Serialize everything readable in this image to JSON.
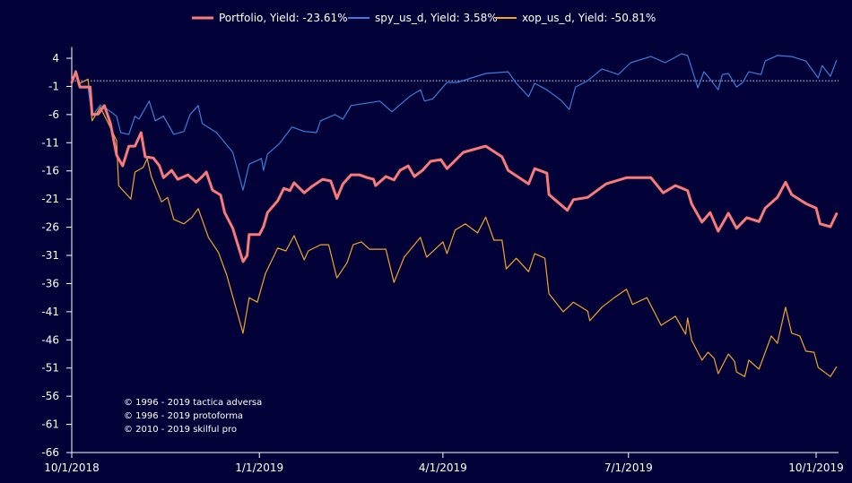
{
  "chart_data": {
    "type": "line",
    "title": "",
    "xlabel": "",
    "ylabel": "",
    "xlim": [
      "2018-10-01",
      "2019-10-11"
    ],
    "ylim": [
      -66,
      6
    ],
    "y_ticks": [
      4,
      -1,
      -6,
      -11,
      -16,
      -21,
      -26,
      -31,
      -36,
      -41,
      -46,
      -51,
      -56,
      -61,
      -66
    ],
    "x_ticks": [
      {
        "date": "2018-10-01",
        "label": "10/1/2018"
      },
      {
        "date": "2019-01-01",
        "label": "1/1/2019"
      },
      {
        "date": "2019-04-01",
        "label": "4/1/2019"
      },
      {
        "date": "2019-07-01",
        "label": "7/1/2019"
      },
      {
        "date": "2019-10-01",
        "label": "10/1/2019"
      }
    ],
    "reference_line": {
      "value": 0,
      "style": "dotted",
      "color": "#cfd3ff"
    },
    "grid": false,
    "legend_position": "top-center",
    "series": [
      {
        "name": "Portfolio, Yield: -23.61%",
        "color": "#f87a7a",
        "points": [
          [
            "2018-10-01",
            -0.3
          ],
          [
            "2018-10-03",
            1.6
          ],
          [
            "2018-10-05",
            -1.1
          ],
          [
            "2018-10-10",
            -1.1
          ],
          [
            "2018-10-11",
            -6.0
          ],
          [
            "2018-10-14",
            -5.9
          ],
          [
            "2018-10-17",
            -4.4
          ],
          [
            "2018-10-20",
            -7.6
          ],
          [
            "2018-10-23",
            -13.2
          ],
          [
            "2018-10-26",
            -15.1
          ],
          [
            "2018-10-29",
            -11.6
          ],
          [
            "2018-11-01",
            -11.6
          ],
          [
            "2018-11-04",
            -9.2
          ],
          [
            "2018-11-06",
            -13.5
          ],
          [
            "2018-11-10",
            -13.7
          ],
          [
            "2018-11-13",
            -15.1
          ],
          [
            "2018-11-15",
            -17.2
          ],
          [
            "2018-11-19",
            -15.9
          ],
          [
            "2018-11-22",
            -17.5
          ],
          [
            "2018-11-27",
            -16.7
          ],
          [
            "2018-12-01",
            -18.0
          ],
          [
            "2018-12-04",
            -17.0
          ],
          [
            "2018-12-06",
            -16.2
          ],
          [
            "2018-12-09",
            -19.4
          ],
          [
            "2018-12-13",
            -20.3
          ],
          [
            "2018-12-15",
            -23.4
          ],
          [
            "2018-12-19",
            -26.2
          ],
          [
            "2018-12-21",
            -28.6
          ],
          [
            "2018-12-24",
            -32.1
          ],
          [
            "2018-12-26",
            -31.0
          ],
          [
            "2018-12-27",
            -27.3
          ],
          [
            "2019-01-01",
            -27.3
          ],
          [
            "2019-01-03",
            -25.9
          ],
          [
            "2019-01-05",
            -23.4
          ],
          [
            "2019-01-10",
            -21.3
          ],
          [
            "2019-01-13",
            -19.1
          ],
          [
            "2019-01-16",
            -19.5
          ],
          [
            "2019-01-18",
            -18.1
          ],
          [
            "2019-01-23",
            -19.9
          ],
          [
            "2019-01-27",
            -18.7
          ],
          [
            "2019-02-01",
            -17.5
          ],
          [
            "2019-02-05",
            -17.8
          ],
          [
            "2019-02-08",
            -20.9
          ],
          [
            "2019-02-11",
            -18.3
          ],
          [
            "2019-02-15",
            -16.7
          ],
          [
            "2019-02-19",
            -16.7
          ],
          [
            "2019-02-23",
            -17.2
          ],
          [
            "2019-02-26",
            -17.5
          ],
          [
            "2019-02-27",
            -18.6
          ],
          [
            "2019-03-04",
            -17.0
          ],
          [
            "2019-03-08",
            -17.6
          ],
          [
            "2019-03-11",
            -15.9
          ],
          [
            "2019-03-15",
            -15.1
          ],
          [
            "2019-03-18",
            -17.0
          ],
          [
            "2019-03-22",
            -15.9
          ],
          [
            "2019-03-26",
            -14.3
          ],
          [
            "2019-03-31",
            -14.0
          ],
          [
            "2019-04-03",
            -15.6
          ],
          [
            "2019-04-11",
            -12.7
          ],
          [
            "2019-04-22",
            -11.6
          ],
          [
            "2019-04-30",
            -13.5
          ],
          [
            "2019-05-03",
            -15.9
          ],
          [
            "2019-05-13",
            -18.3
          ],
          [
            "2019-05-16",
            -15.6
          ],
          [
            "2019-05-22",
            -16.4
          ],
          [
            "2019-05-23",
            -20.2
          ],
          [
            "2019-06-01",
            -23.0
          ],
          [
            "2019-06-04",
            -21.1
          ],
          [
            "2019-06-11",
            -20.7
          ],
          [
            "2019-06-20",
            -18.3
          ],
          [
            "2019-06-30",
            -17.2
          ],
          [
            "2019-07-12",
            -17.2
          ],
          [
            "2019-07-18",
            -19.9
          ],
          [
            "2019-07-24",
            -18.6
          ],
          [
            "2019-07-30",
            -19.5
          ],
          [
            "2019-08-01",
            -21.9
          ],
          [
            "2019-08-06",
            -25.1
          ],
          [
            "2019-08-10",
            -23.4
          ],
          [
            "2019-08-14",
            -26.7
          ],
          [
            "2019-08-19",
            -23.5
          ],
          [
            "2019-08-23",
            -26.2
          ],
          [
            "2019-08-28",
            -24.3
          ],
          [
            "2019-09-03",
            -25.0
          ],
          [
            "2019-09-06",
            -22.6
          ],
          [
            "2019-09-12",
            -20.7
          ],
          [
            "2019-09-16",
            -18.0
          ],
          [
            "2019-09-19",
            -20.2
          ],
          [
            "2019-09-26",
            -21.8
          ],
          [
            "2019-10-01",
            -22.6
          ],
          [
            "2019-10-03",
            -25.4
          ],
          [
            "2019-10-08",
            -25.9
          ],
          [
            "2019-10-11",
            -23.61
          ]
        ]
      },
      {
        "name": "spy_us_d, Yield: 3.58%",
        "color": "#3b7ddd",
        "points": [
          [
            "2018-10-01",
            -0.3
          ],
          [
            "2018-10-03",
            1.6
          ],
          [
            "2018-10-05",
            -1.25
          ],
          [
            "2018-10-09",
            -1.25
          ],
          [
            "2018-10-11",
            -6.3
          ],
          [
            "2018-10-15",
            -4.3
          ],
          [
            "2018-10-19",
            -5.2
          ],
          [
            "2018-10-23",
            -6.3
          ],
          [
            "2018-10-25",
            -9.2
          ],
          [
            "2018-10-29",
            -9.5
          ],
          [
            "2018-11-01",
            -6.3
          ],
          [
            "2018-11-03",
            -6.8
          ],
          [
            "2018-11-08",
            -3.6
          ],
          [
            "2018-11-11",
            -7.1
          ],
          [
            "2018-11-15",
            -6.3
          ],
          [
            "2018-11-20",
            -9.5
          ],
          [
            "2018-11-25",
            -9.0
          ],
          [
            "2018-11-28",
            -6.0
          ],
          [
            "2018-12-02",
            -4.4
          ],
          [
            "2018-12-04",
            -7.6
          ],
          [
            "2018-12-11",
            -9.2
          ],
          [
            "2018-12-19",
            -12.7
          ],
          [
            "2018-12-24",
            -19.4
          ],
          [
            "2018-12-27",
            -14.8
          ],
          [
            "2019-01-02",
            -13.8
          ],
          [
            "2019-01-03",
            -15.9
          ],
          [
            "2019-01-05",
            -13.0
          ],
          [
            "2019-01-11",
            -11.1
          ],
          [
            "2019-01-17",
            -8.2
          ],
          [
            "2019-01-23",
            -9.0
          ],
          [
            "2019-01-29",
            -9.2
          ],
          [
            "2019-01-31",
            -7.1
          ],
          [
            "2019-02-07",
            -6.0
          ],
          [
            "2019-02-11",
            -6.8
          ],
          [
            "2019-02-15",
            -4.4
          ],
          [
            "2019-03-01",
            -3.6
          ],
          [
            "2019-03-07",
            -5.5
          ],
          [
            "2019-03-16",
            -2.7
          ],
          [
            "2019-03-21",
            -1.6
          ],
          [
            "2019-03-23",
            -3.6
          ],
          [
            "2019-03-27",
            -3.2
          ],
          [
            "2019-04-03",
            -0.3
          ],
          [
            "2019-04-08",
            -0.3
          ],
          [
            "2019-04-22",
            1.3
          ],
          [
            "2019-05-03",
            1.6
          ],
          [
            "2019-05-07",
            -0.45
          ],
          [
            "2019-05-13",
            -2.8
          ],
          [
            "2019-05-16",
            -0.45
          ],
          [
            "2019-05-22",
            -1.6
          ],
          [
            "2019-05-29",
            -3.5
          ],
          [
            "2019-06-02",
            -5.1
          ],
          [
            "2019-06-05",
            -1.1
          ],
          [
            "2019-06-11",
            0.0
          ],
          [
            "2019-06-18",
            2.1
          ],
          [
            "2019-06-26",
            1.1
          ],
          [
            "2019-07-02",
            3.2
          ],
          [
            "2019-07-12",
            4.3
          ],
          [
            "2019-07-19",
            3.2
          ],
          [
            "2019-07-27",
            4.8
          ],
          [
            "2019-07-30",
            4.5
          ],
          [
            "2019-08-04",
            -1.25
          ],
          [
            "2019-08-07",
            1.6
          ],
          [
            "2019-08-10",
            0.3
          ],
          [
            "2019-08-14",
            -1.6
          ],
          [
            "2019-08-16",
            1.1
          ],
          [
            "2019-08-19",
            1.3
          ],
          [
            "2019-08-23",
            -1.1
          ],
          [
            "2019-08-26",
            -0.3
          ],
          [
            "2019-08-29",
            1.6
          ],
          [
            "2019-09-04",
            1.1
          ],
          [
            "2019-09-06",
            3.5
          ],
          [
            "2019-09-12",
            4.5
          ],
          [
            "2019-09-19",
            4.3
          ],
          [
            "2019-09-26",
            3.5
          ],
          [
            "2019-10-02",
            0.5
          ],
          [
            "2019-10-04",
            2.7
          ],
          [
            "2019-10-08",
            0.8
          ],
          [
            "2019-10-11",
            3.58
          ]
        ]
      },
      {
        "name": "xop_us_d, Yield: -50.81%",
        "color": "#f0a52c",
        "points": [
          [
            "2018-10-01",
            -0.3
          ],
          [
            "2018-10-03",
            1.8
          ],
          [
            "2018-10-05",
            -0.45
          ],
          [
            "2018-10-09",
            0.3
          ],
          [
            "2018-10-11",
            -7.1
          ],
          [
            "2018-10-15",
            -4.7
          ],
          [
            "2018-10-19",
            -7.6
          ],
          [
            "2018-10-23",
            -10.6
          ],
          [
            "2018-10-24",
            -18.6
          ],
          [
            "2018-10-30",
            -21.0
          ],
          [
            "2018-11-01",
            -16.2
          ],
          [
            "2018-11-05",
            -15.4
          ],
          [
            "2018-11-07",
            -13.8
          ],
          [
            "2018-11-09",
            -17.0
          ],
          [
            "2018-11-14",
            -21.5
          ],
          [
            "2018-11-17",
            -20.7
          ],
          [
            "2018-11-20",
            -24.6
          ],
          [
            "2018-11-25",
            -25.4
          ],
          [
            "2018-11-29",
            -24.2
          ],
          [
            "2018-12-02",
            -22.7
          ],
          [
            "2018-12-07",
            -27.8
          ],
          [
            "2018-12-12",
            -30.5
          ],
          [
            "2018-12-16",
            -34.5
          ],
          [
            "2018-12-24",
            -44.8
          ],
          [
            "2018-12-27",
            -38.5
          ],
          [
            "2018-12-31",
            -39.3
          ],
          [
            "2019-01-04",
            -34.2
          ],
          [
            "2019-01-10",
            -29.7
          ],
          [
            "2019-01-14",
            -30.2
          ],
          [
            "2019-01-18",
            -27.5
          ],
          [
            "2019-01-23",
            -31.8
          ],
          [
            "2019-01-25",
            -30.2
          ],
          [
            "2019-01-31",
            -29.1
          ],
          [
            "2019-02-04",
            -29.1
          ],
          [
            "2019-02-08",
            -35.0
          ],
          [
            "2019-02-13",
            -32.3
          ],
          [
            "2019-02-16",
            -29.1
          ],
          [
            "2019-02-20",
            -28.6
          ],
          [
            "2019-02-24",
            -29.9
          ],
          [
            "2019-03-04",
            -29.9
          ],
          [
            "2019-03-08",
            -35.8
          ],
          [
            "2019-03-13",
            -31.3
          ],
          [
            "2019-03-21",
            -27.8
          ],
          [
            "2019-03-24",
            -31.3
          ],
          [
            "2019-04-01",
            -28.6
          ],
          [
            "2019-04-03",
            -30.7
          ],
          [
            "2019-04-07",
            -26.5
          ],
          [
            "2019-04-12",
            -25.4
          ],
          [
            "2019-04-18",
            -27.0
          ],
          [
            "2019-04-22",
            -24.2
          ],
          [
            "2019-04-26",
            -28.3
          ],
          [
            "2019-04-30",
            -28.3
          ],
          [
            "2019-05-02",
            -33.4
          ],
          [
            "2019-05-07",
            -31.5
          ],
          [
            "2019-05-13",
            -33.9
          ],
          [
            "2019-05-16",
            -30.7
          ],
          [
            "2019-05-21",
            -31.5
          ],
          [
            "2019-05-23",
            -37.8
          ],
          [
            "2019-05-30",
            -41.0
          ],
          [
            "2019-06-04",
            -39.3
          ],
          [
            "2019-06-11",
            -40.9
          ],
          [
            "2019-06-12",
            -42.6
          ],
          [
            "2019-06-18",
            -40.2
          ],
          [
            "2019-06-24",
            -38.5
          ],
          [
            "2019-06-30",
            -37.0
          ],
          [
            "2019-07-03",
            -39.7
          ],
          [
            "2019-07-10",
            -38.5
          ],
          [
            "2019-07-17",
            -43.4
          ],
          [
            "2019-07-24",
            -41.8
          ],
          [
            "2019-07-29",
            -45.0
          ],
          [
            "2019-07-30",
            -42.1
          ],
          [
            "2019-08-01",
            -46.1
          ],
          [
            "2019-08-06",
            -49.6
          ],
          [
            "2019-08-09",
            -48.2
          ],
          [
            "2019-08-12",
            -49.3
          ],
          [
            "2019-08-14",
            -52.0
          ],
          [
            "2019-08-19",
            -48.5
          ],
          [
            "2019-08-22",
            -49.8
          ],
          [
            "2019-08-23",
            -51.7
          ],
          [
            "2019-08-27",
            -52.5
          ],
          [
            "2019-08-29",
            -49.6
          ],
          [
            "2019-09-03",
            -51.2
          ],
          [
            "2019-09-09",
            -45.3
          ],
          [
            "2019-09-12",
            -46.6
          ],
          [
            "2019-09-16",
            -40.2
          ],
          [
            "2019-09-19",
            -44.8
          ],
          [
            "2019-09-23",
            -45.3
          ],
          [
            "2019-09-26",
            -48.0
          ],
          [
            "2019-09-30",
            -48.2
          ],
          [
            "2019-10-02",
            -50.9
          ],
          [
            "2019-10-08",
            -52.5
          ],
          [
            "2019-10-11",
            -50.81
          ]
        ]
      }
    ],
    "annotations": [
      "© 1996 - 2019 tactica adversa",
      "© 1996 - 2019 protoforma",
      "© 2010 - 2019 skilful pro"
    ]
  }
}
